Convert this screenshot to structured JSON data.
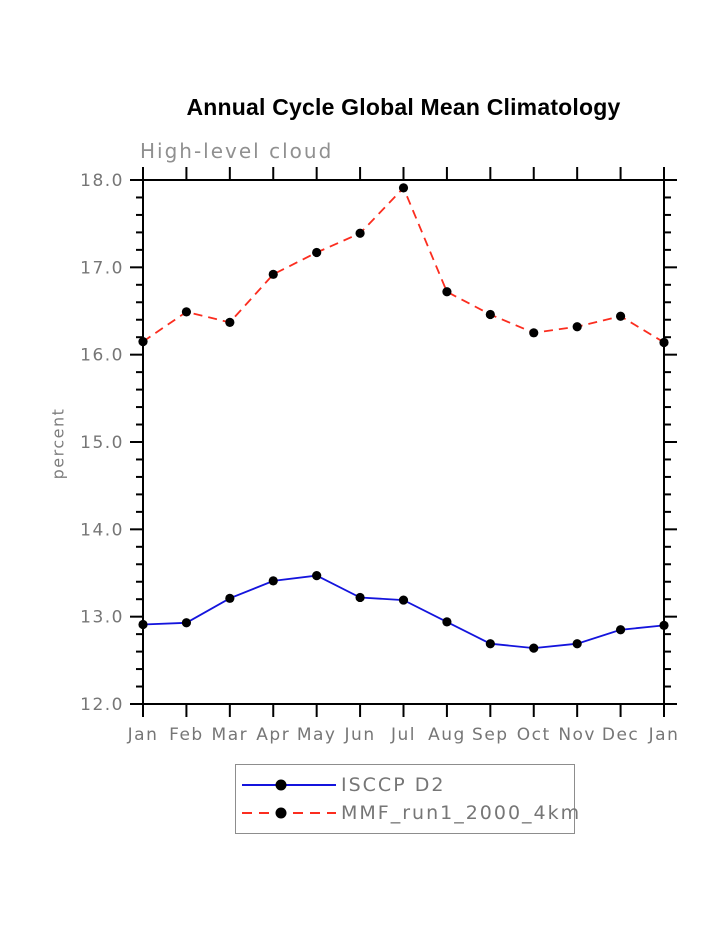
{
  "page": {
    "background": "#ffffff"
  },
  "chart_data": {
    "type": "line",
    "title": "Annual Cycle Global Mean Climatology",
    "subtitle": "High-level cloud",
    "xlabel": "",
    "ylabel": "percent",
    "categories": [
      "Jan",
      "Feb",
      "Mar",
      "Apr",
      "May",
      "Jun",
      "Jul",
      "Aug",
      "Sep",
      "Oct",
      "Nov",
      "Dec",
      "Jan"
    ],
    "ylim": [
      12.0,
      18.0
    ],
    "yticks": [
      "12.0",
      "13.0",
      "14.0",
      "15.0",
      "16.0",
      "17.0",
      "18.0"
    ],
    "ytick_values": [
      12.0,
      13.0,
      14.0,
      15.0,
      16.0,
      17.0,
      18.0
    ],
    "y_minor_step": 0.2,
    "grid": "off",
    "legend_position": "bottom-center",
    "axis_color": "#000000",
    "series": [
      {
        "name": "ISCCP D2",
        "color": "#1414dd",
        "style": "solid",
        "marker": "filled-circle",
        "marker_color": "#000000",
        "values": [
          12.91,
          12.93,
          13.21,
          13.41,
          13.47,
          13.22,
          13.19,
          12.94,
          12.69,
          12.64,
          12.69,
          12.85,
          12.9
        ]
      },
      {
        "name": "MMF_run1_2000_4km",
        "color": "#fb2d1f",
        "style": "dashed",
        "marker": "filled-circle",
        "marker_color": "#000000",
        "values": [
          16.15,
          16.49,
          16.37,
          16.92,
          17.17,
          17.39,
          17.91,
          16.72,
          16.46,
          16.25,
          16.32,
          16.44,
          16.14
        ]
      }
    ]
  }
}
